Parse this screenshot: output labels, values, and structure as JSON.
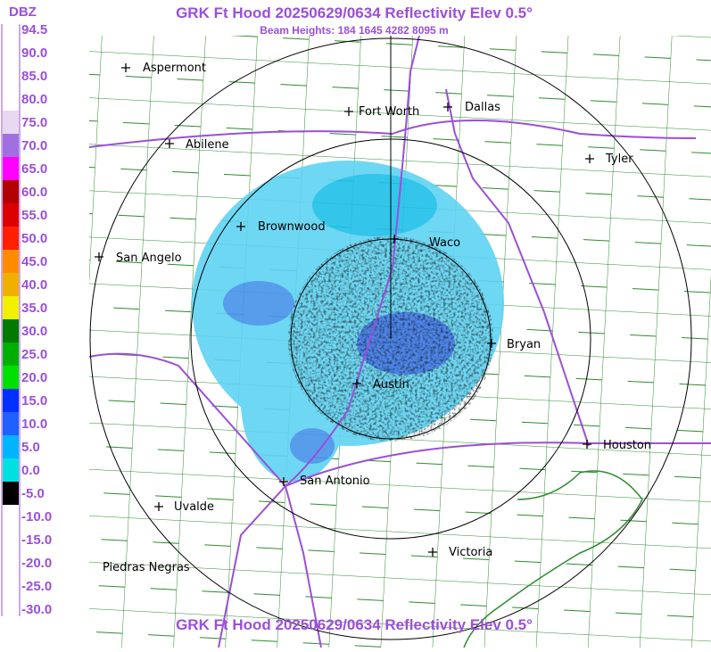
{
  "header": {
    "title": "GRK Ft Hood 20250629/0634 Reflectivity Elev 0.5°",
    "subtitle": "Beam Heights: 184 1645 4282 8095 m"
  },
  "legend": {
    "unit": "DBZ",
    "labels": [
      "94.5",
      "90.0",
      "85.0",
      "80.0",
      "75.0",
      "70.0",
      "65.0",
      "60.0",
      "55.0",
      "50.0",
      "45.0",
      "40.0",
      "35.0",
      "30.0",
      "25.0",
      "20.0",
      "15.0",
      "10.0",
      "5.0",
      "0.0",
      "-5.0",
      "-10.0",
      "-15.0",
      "-20.0",
      "-25.0",
      "-30.0"
    ]
  },
  "cities": [
    "Aspermont",
    "Fort Worth",
    "Dallas",
    "Abilene",
    "Tyler",
    "Brownwood",
    "Waco",
    "San Angelo",
    "Bryan",
    "Austin",
    "Houston",
    "San Antonio",
    "Uvalde",
    "Victoria",
    "Piedras Negras"
  ],
  "footer": {
    "title": "GRK Ft Hood 20250629/0634 Reflectivity Elev 0.5°"
  }
}
